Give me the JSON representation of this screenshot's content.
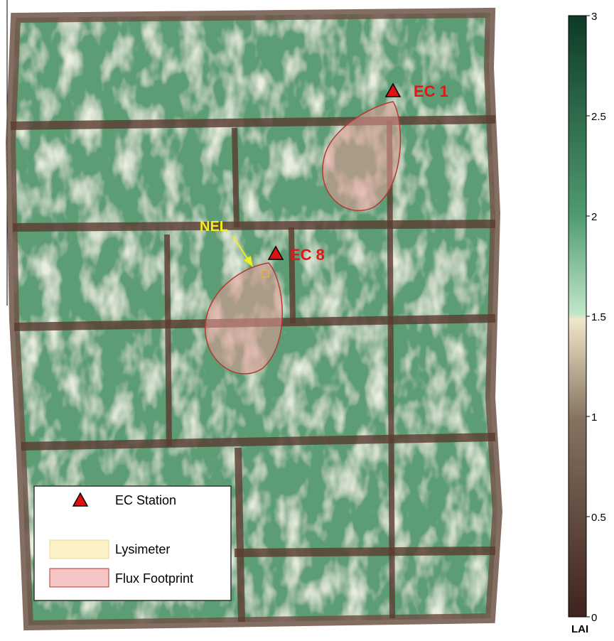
{
  "map": {
    "stations": [
      {
        "label": "EC 1"
      },
      {
        "label": "EC 8"
      }
    ],
    "lysimeter_label": "NEL",
    "legend": [
      {
        "label": "EC Station"
      },
      {
        "label": "Lysimeter"
      },
      {
        "label": "Flux Footprint"
      }
    ]
  },
  "colorbar": {
    "label": "LAI",
    "lim": [
      0,
      3
    ],
    "ticks": [
      0,
      0.5,
      1,
      1.5,
      2,
      2.5,
      3
    ]
  }
}
